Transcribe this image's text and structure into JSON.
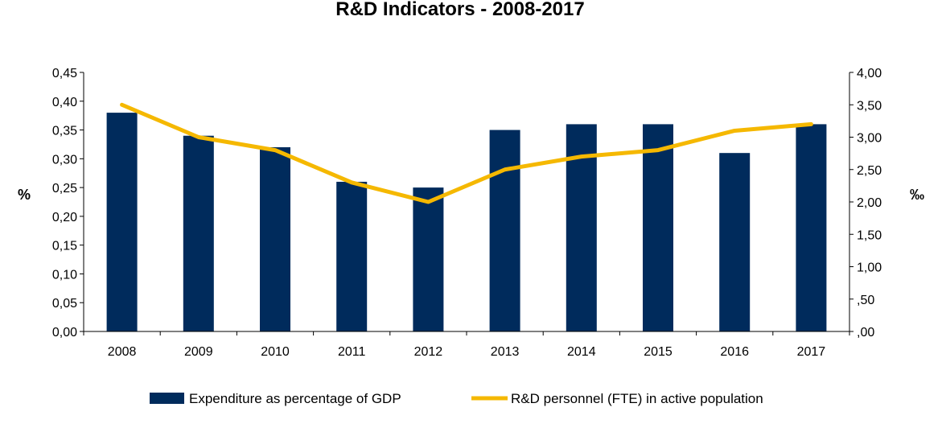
{
  "chart_data": {
    "type": "bar",
    "title": "R&D Indicators - 2008-2017",
    "categories": [
      "2008",
      "2009",
      "2010",
      "2011",
      "2012",
      "2013",
      "2014",
      "2015",
      "2016",
      "2017"
    ],
    "series": [
      {
        "name": "Expenditure as percentage of GDP",
        "type": "bar",
        "axis": "left",
        "color": "#002b5c",
        "values": [
          0.38,
          0.34,
          0.32,
          0.26,
          0.25,
          0.35,
          0.36,
          0.36,
          0.31,
          0.36
        ]
      },
      {
        "name": "R&D personnel (FTE) in active population",
        "type": "line",
        "axis": "right",
        "color": "#f5b800",
        "values": [
          3.5,
          3.0,
          2.8,
          2.3,
          2.0,
          2.5,
          2.7,
          2.8,
          3.1,
          3.2
        ]
      }
    ],
    "ylabel": "%",
    "y2label": "‰",
    "ylim": [
      0,
      0.45
    ],
    "y2lim": [
      0,
      4.0
    ],
    "yticks": [
      "0,00",
      "0,05",
      "0,10",
      "0,15",
      "0,20",
      "0,25",
      "0,30",
      "0,35",
      "0,40",
      "0,45"
    ],
    "y2ticks": [
      ",00",
      ",50",
      "1,00",
      "1,50",
      "2,00",
      "2,50",
      "3,00",
      "3,50",
      "4,00"
    ],
    "grid": false,
    "legend_position": "bottom"
  }
}
